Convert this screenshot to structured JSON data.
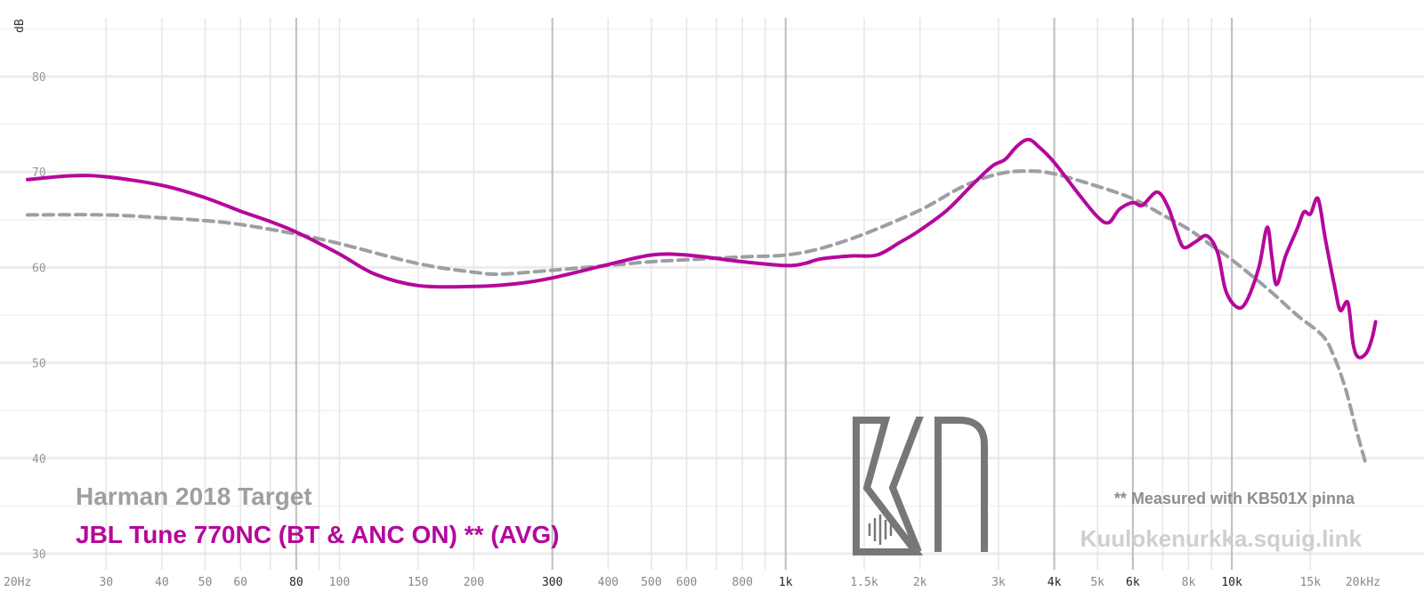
{
  "chart_data": {
    "type": "line",
    "xscale": "log",
    "xlim": [
      20,
      20000
    ],
    "ylim": [
      30,
      88
    ],
    "ylabel": "dB",
    "grid": true,
    "y_ticks": [
      "30",
      "40",
      "50",
      "60",
      "70",
      "80"
    ],
    "x_ticks": [
      {
        "f": 20,
        "label": "20Hz"
      },
      {
        "f": 30,
        "label": "30"
      },
      {
        "f": 40,
        "label": "40"
      },
      {
        "f": 50,
        "label": "50"
      },
      {
        "f": 60,
        "label": "60"
      },
      {
        "f": 80,
        "label": "80"
      },
      {
        "f": 100,
        "label": "100"
      },
      {
        "f": 150,
        "label": "150"
      },
      {
        "f": 200,
        "label": "200"
      },
      {
        "f": 300,
        "label": "300"
      },
      {
        "f": 400,
        "label": "400"
      },
      {
        "f": 500,
        "label": "500"
      },
      {
        "f": 600,
        "label": "600"
      },
      {
        "f": 800,
        "label": "800"
      },
      {
        "f": 1000,
        "label": "1k"
      },
      {
        "f": 1500,
        "label": "1.5k"
      },
      {
        "f": 2000,
        "label": "2k"
      },
      {
        "f": 3000,
        "label": "3k"
      },
      {
        "f": 4000,
        "label": "4k"
      },
      {
        "f": 5000,
        "label": "5k"
      },
      {
        "f": 6000,
        "label": "6k"
      },
      {
        "f": 8000,
        "label": "8k"
      },
      {
        "f": 10000,
        "label": "10k"
      },
      {
        "f": 15000,
        "label": "15k"
      },
      {
        "f": 20000,
        "label": "20kHz"
      }
    ],
    "series": [
      {
        "name": "Harman 2018 Target",
        "color": "#9e9ea3",
        "dashed": true,
        "points": [
          [
            20,
            65.5
          ],
          [
            30,
            65.5
          ],
          [
            40,
            65.2
          ],
          [
            50,
            64.9
          ],
          [
            60,
            64.5
          ],
          [
            80,
            63.5
          ],
          [
            100,
            62.5
          ],
          [
            150,
            60.4
          ],
          [
            200,
            59.5
          ],
          [
            230,
            59.3
          ],
          [
            300,
            59.7
          ],
          [
            400,
            60.2
          ],
          [
            500,
            60.6
          ],
          [
            600,
            60.8
          ],
          [
            800,
            61.1
          ],
          [
            1000,
            61.3
          ],
          [
            1200,
            62.0
          ],
          [
            1500,
            63.5
          ],
          [
            2000,
            66.0
          ],
          [
            2500,
            68.5
          ],
          [
            3000,
            69.8
          ],
          [
            3500,
            70.1
          ],
          [
            4000,
            69.8
          ],
          [
            5000,
            68.5
          ],
          [
            6000,
            67.2
          ],
          [
            7000,
            65.5
          ],
          [
            8000,
            64.0
          ],
          [
            9000,
            62.3
          ],
          [
            10000,
            60.8
          ],
          [
            12000,
            57.8
          ],
          [
            14000,
            55.0
          ],
          [
            16000,
            52.8
          ],
          [
            17000,
            50.5
          ],
          [
            18000,
            47.2
          ],
          [
            19000,
            43.0
          ],
          [
            20000,
            39.3
          ]
        ]
      },
      {
        "name": "JBL Tune 770NC (BT & ANC ON) ** (AVG)",
        "color": "#b5089b",
        "dashed": false,
        "points": [
          [
            20,
            69.2
          ],
          [
            25,
            69.6
          ],
          [
            30,
            69.5
          ],
          [
            40,
            68.6
          ],
          [
            50,
            67.3
          ],
          [
            60,
            65.9
          ],
          [
            70,
            64.8
          ],
          [
            80,
            63.7
          ],
          [
            100,
            61.4
          ],
          [
            120,
            59.3
          ],
          [
            150,
            58.1
          ],
          [
            200,
            58.0
          ],
          [
            250,
            58.3
          ],
          [
            300,
            58.9
          ],
          [
            400,
            60.3
          ],
          [
            500,
            61.3
          ],
          [
            600,
            61.3
          ],
          [
            800,
            60.6
          ],
          [
            1000,
            60.2
          ],
          [
            1100,
            60.4
          ],
          [
            1200,
            60.9
          ],
          [
            1400,
            61.2
          ],
          [
            1600,
            61.3
          ],
          [
            1800,
            62.6
          ],
          [
            2000,
            63.9
          ],
          [
            2300,
            66.0
          ],
          [
            2600,
            68.5
          ],
          [
            2900,
            70.6
          ],
          [
            3100,
            71.3
          ],
          [
            3300,
            72.7
          ],
          [
            3500,
            73.4
          ],
          [
            3700,
            72.6
          ],
          [
            4000,
            71.0
          ],
          [
            4500,
            67.9
          ],
          [
            5000,
            65.3
          ],
          [
            5300,
            64.7
          ],
          [
            5600,
            66.1
          ],
          [
            6000,
            66.8
          ],
          [
            6300,
            66.5
          ],
          [
            6800,
            67.9
          ],
          [
            7200,
            66.3
          ],
          [
            7500,
            63.9
          ],
          [
            7800,
            62.1
          ],
          [
            8300,
            62.7
          ],
          [
            8800,
            63.3
          ],
          [
            9300,
            61.5
          ],
          [
            9700,
            57.5
          ],
          [
            10300,
            55.8
          ],
          [
            10800,
            56.5
          ],
          [
            11500,
            60.0
          ],
          [
            12000,
            64.2
          ],
          [
            12300,
            61.0
          ],
          [
            12600,
            58.2
          ],
          [
            13200,
            61.2
          ],
          [
            14000,
            64.0
          ],
          [
            14500,
            65.8
          ],
          [
            15000,
            65.6
          ],
          [
            15600,
            67.2
          ],
          [
            16200,
            63.0
          ],
          [
            17000,
            58.0
          ],
          [
            17500,
            55.5
          ],
          [
            18200,
            56.3
          ],
          [
            18700,
            52.0
          ],
          [
            19200,
            50.6
          ],
          [
            20000,
            51.0
          ],
          [
            20600,
            52.5
          ],
          [
            21000,
            54.3
          ]
        ]
      }
    ]
  },
  "legend": {
    "target_label": "Harman 2018 Target",
    "measurement_label": "JBL Tune 770NC (BT & ANC ON) ** (AVG)"
  },
  "annotations": {
    "note": "** Measured with KB501X pinna",
    "watermark": "Kuulokenurkka.squig.link",
    "logo_text": "KN"
  },
  "colors": {
    "target": "#9e9ea3",
    "measurement": "#b5089b",
    "note": "#8c8c91",
    "watermark": "#cfcfd2",
    "logo": "#777777"
  }
}
